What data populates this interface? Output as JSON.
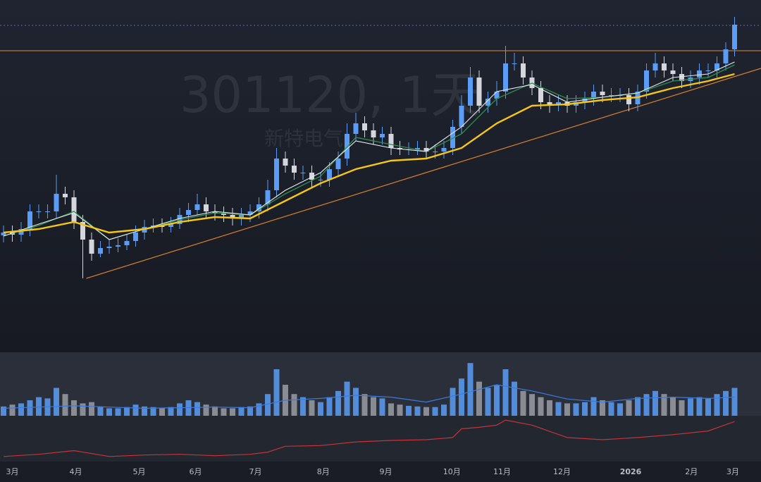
{
  "chart_data": {
    "type": "candlestick",
    "title": "301120, 1天",
    "subtitle": "新特电气",
    "open": [
      16.6,
      17,
      16.7,
      17.5,
      20,
      20,
      20,
      22.5,
      22,
      18.5,
      16,
      14,
      14.8,
      15,
      15.2,
      15.8,
      17,
      17.8,
      18,
      17.8,
      18.2,
      19.5,
      20.2,
      21,
      20,
      19.7,
      19.5,
      19,
      19.5,
      20,
      21,
      23,
      27.5,
      26.5,
      25.5,
      25.5,
      24.5,
      24.5,
      26,
      27.5,
      31,
      32.5,
      31.5,
      30.5,
      31,
      29,
      28.8,
      28.8,
      29,
      28.5,
      28.5,
      29,
      32,
      35,
      39,
      35,
      36,
      37,
      41,
      41,
      39,
      37.5,
      35.5,
      35.2,
      35.5,
      35,
      35.5,
      36,
      37,
      36.5,
      36.5,
      36.5,
      35.2,
      37,
      40,
      41,
      40,
      39.5,
      38.5,
      39,
      40,
      40,
      41,
      43
    ],
    "high": [
      18,
      18,
      18.5,
      21,
      21,
      21,
      25.2,
      23.5,
      23,
      19.5,
      17,
      15.8,
      16,
      16.2,
      16.8,
      18,
      18.8,
      19,
      19,
      19.2,
      20.5,
      21.2,
      22.5,
      22,
      21,
      20.7,
      20.5,
      20.5,
      21,
      22,
      24.5,
      29,
      28.5,
      27.5,
      26.5,
      26.5,
      25.5,
      27,
      28.5,
      32.5,
      34,
      33.5,
      32.5,
      32,
      32,
      30,
      29.8,
      30,
      30,
      29.5,
      30,
      33,
      36.5,
      40.5,
      40,
      37,
      38.5,
      43.5,
      42.5,
      42,
      40,
      38.5,
      36.5,
      36.5,
      36.5,
      36.5,
      37,
      38,
      38,
      37.5,
      37.5,
      37.5,
      38,
      41,
      42.5,
      42,
      41,
      40.5,
      40,
      41,
      41,
      42,
      44,
      47.6
    ],
    "low": [
      15.6,
      15.7,
      15.7,
      16.5,
      19,
      19,
      19,
      21,
      17.5,
      10.5,
      13,
      13.5,
      14,
      14.2,
      14.5,
      15,
      16,
      17,
      17,
      17,
      17.5,
      18.5,
      19.5,
      19,
      18.7,
      18.5,
      18,
      18,
      18.5,
      19,
      20,
      22,
      25.5,
      24.5,
      24.5,
      23.5,
      23.5,
      23.5,
      25,
      26.5,
      30,
      30.5,
      29.5,
      29.5,
      28,
      28,
      28,
      28,
      27.5,
      27.5,
      27.5,
      28,
      31,
      34,
      34,
      34,
      35,
      36,
      40,
      38,
      36.5,
      34.5,
      34,
      34.2,
      34,
      34,
      34.5,
      35,
      35.5,
      35.5,
      35.5,
      34.2,
      34.2,
      36,
      39,
      39,
      38.5,
      37.5,
      37.5,
      38,
      39,
      39,
      40,
      42
    ],
    "close": [
      17,
      16.7,
      17.5,
      20,
      20,
      20,
      22.5,
      22,
      18.5,
      16,
      14,
      14.8,
      15,
      15.2,
      15.8,
      17,
      17.8,
      18,
      17.8,
      18.2,
      19.5,
      20.2,
      21,
      20,
      19.7,
      19.5,
      19,
      19.5,
      20,
      21,
      23,
      27.5,
      26.5,
      25.5,
      25.5,
      24.5,
      24.5,
      26,
      27.5,
      31,
      32.5,
      31.5,
      30.5,
      31,
      29,
      28.8,
      28.8,
      29,
      28.5,
      28.5,
      29,
      32,
      35,
      39,
      35,
      36,
      37,
      41,
      41,
      39,
      37.5,
      35.5,
      35.2,
      35.5,
      35,
      35.5,
      36,
      37,
      36.5,
      36.5,
      36.5,
      35.2,
      37,
      40,
      41,
      40,
      39.5,
      38.5,
      39,
      40,
      40,
      41,
      43,
      46.5
    ],
    "up_color": "#5b9cf6",
    "down_color": "#d4d6dc",
    "xlim": [
      -0.4,
      86
    ],
    "xticks": [
      {
        "value": 1,
        "label": "3月"
      },
      {
        "value": 8.2,
        "label": "4月"
      },
      {
        "value": 15.4,
        "label": "5月"
      },
      {
        "value": 21.8,
        "label": "6月"
      },
      {
        "value": 28.6,
        "label": "7月"
      },
      {
        "value": 36.3,
        "label": "8月"
      },
      {
        "value": 43.4,
        "label": "9月"
      },
      {
        "value": 50.9,
        "label": "10月"
      },
      {
        "value": 56.6,
        "label": "11月"
      },
      {
        "value": 63.4,
        "label": "12月"
      },
      {
        "value": 71.2,
        "label": "2026"
      },
      {
        "value": 78.1,
        "label": "2月"
      },
      {
        "value": 82.8,
        "label": "3月"
      }
    ],
    "ylim": [
      0,
      50
    ],
    "lines": [
      {
        "color": "#2f8f4e",
        "width": 1.3,
        "x": [
          0,
          4,
          8,
          12,
          16,
          20,
          24,
          28,
          32,
          36,
          40,
          44,
          48,
          52,
          56,
          60,
          64,
          68,
          72,
          76,
          80,
          83
        ],
        "values": [
          16.5,
          18,
          20,
          16,
          17.5,
          18.8,
          19.8,
          19.5,
          22.5,
          25,
          30.5,
          29.5,
          28.5,
          31,
          36,
          38.2,
          36,
          36.2,
          36.8,
          38.5,
          39,
          40.8
        ]
      },
      {
        "color": "#e8ecf2",
        "width": 1.1,
        "x": [
          0,
          4,
          8,
          12,
          16,
          20,
          24,
          28,
          32,
          36,
          40,
          44,
          48,
          52,
          56,
          60,
          64,
          68,
          72,
          76,
          80,
          83
        ],
        "values": [
          16.5,
          18.2,
          19.8,
          16,
          17.5,
          19,
          20,
          19.5,
          23,
          25.5,
          30,
          29,
          28.5,
          32,
          37,
          38,
          35.5,
          36.2,
          36.8,
          39,
          39.5,
          41.2
        ]
      },
      {
        "color": "#f5c518",
        "width": 2.4,
        "x": [
          0,
          4,
          8,
          12,
          16,
          20,
          24,
          28,
          32,
          36,
          40,
          44,
          48,
          52,
          56,
          60,
          64,
          68,
          72,
          76,
          80,
          83
        ],
        "values": [
          17,
          17.5,
          18.5,
          17,
          17.5,
          18.5,
          19.2,
          19,
          21.5,
          24,
          26,
          27.2,
          27.5,
          29,
          32.5,
          35,
          35.2,
          35.8,
          36.2,
          37.5,
          38.5,
          39.5
        ]
      }
    ],
    "levels": [
      {
        "value": 42.8,
        "color": "#e08a2c",
        "dashed": false
      },
      {
        "value": 46.4,
        "color": "#5a6f96",
        "dashed": true
      }
    ],
    "trendline": {
      "x": [
        9.4,
        86
      ],
      "values": [
        10.5,
        40.3
      ],
      "color": "#d9822b"
    },
    "volume": {
      "values": [
        15,
        18,
        20,
        25,
        30,
        28,
        45,
        35,
        25,
        20,
        22,
        15,
        12,
        12,
        14,
        18,
        15,
        14,
        12,
        14,
        20,
        25,
        22,
        18,
        15,
        12,
        12,
        14,
        15,
        20,
        35,
        75,
        50,
        35,
        30,
        25,
        22,
        30,
        40,
        55,
        45,
        35,
        30,
        28,
        20,
        18,
        16,
        15,
        14,
        14,
        18,
        45,
        60,
        85,
        55,
        45,
        50,
        75,
        55,
        40,
        35,
        30,
        25,
        22,
        20,
        20,
        22,
        30,
        25,
        22,
        20,
        25,
        30,
        35,
        40,
        35,
        30,
        25,
        28,
        30,
        28,
        35,
        40,
        45
      ],
      "ylim": [
        0,
        100
      ],
      "ma": {
        "color": "#3a7be0",
        "x": [
          0,
          4,
          8,
          12,
          16,
          20,
          24,
          28,
          32,
          36,
          40,
          44,
          48,
          52,
          56,
          60,
          64,
          68,
          72,
          76,
          80,
          83
        ],
        "values": [
          12,
          14,
          16,
          14,
          12,
          13,
          14,
          13,
          25,
          28,
          33,
          30,
          22,
          35,
          50,
          40,
          27,
          22,
          28,
          30,
          28,
          30
        ]
      }
    },
    "indicator": {
      "color": "#c8343a",
      "ylim": [
        0,
        60
      ],
      "x": [
        0,
        4,
        8,
        12,
        16,
        20,
        24,
        28,
        30,
        32,
        36,
        40,
        44,
        48,
        51,
        52,
        54,
        56,
        57,
        60,
        64,
        68,
        72,
        76,
        80,
        83
      ],
      "values": [
        7,
        10,
        15,
        7,
        9,
        10,
        8,
        10,
        13,
        21,
        22,
        27,
        29,
        30,
        33,
        45,
        47,
        50,
        57,
        50,
        33,
        30,
        33,
        37,
        42,
        55
      ]
    }
  }
}
